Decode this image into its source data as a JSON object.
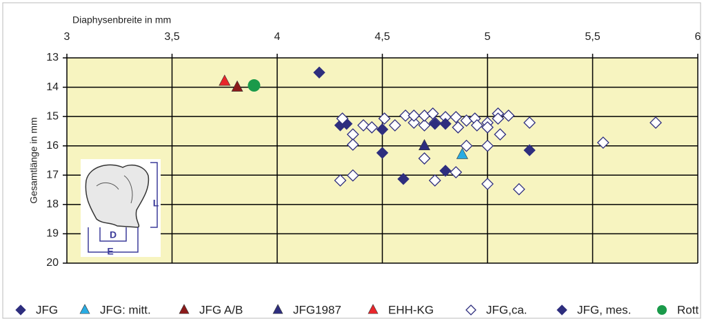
{
  "chart_data": {
    "type": "scatter",
    "x_label": "Diaphysenbreite in mm",
    "y_label": "Gesamtlänge in mm",
    "xlim": [
      3,
      6
    ],
    "xticks": [
      3,
      {
        "value": 3.5,
        "label": "3,5"
      },
      4,
      {
        "value": 4.5,
        "label": "4,5"
      },
      5,
      {
        "value": 5.5,
        "label": "5,5"
      },
      6
    ],
    "ylim": [
      13,
      20
    ],
    "yticks": [
      13,
      14,
      15,
      16,
      17,
      18,
      19,
      20
    ],
    "y_inverted": true,
    "x_axis_position": "top",
    "grid": true,
    "background": "#f7f4c0",
    "annotations": [
      "L",
      "D",
      "E"
    ],
    "series": [
      {
        "name": "JFG",
        "color": "#2e2e7e",
        "marker": "diamond",
        "x": [
          4.2,
          4.3,
          4.33,
          4.5,
          4.5
        ],
        "values": [
          13.5,
          15.3,
          15.25,
          15.44,
          16.24
        ]
      },
      {
        "name": "JFG: mitt.",
        "color": "#29abe2",
        "marker": "triangle",
        "x": [
          4.88
        ],
        "values": [
          16.3
        ]
      },
      {
        "name": "JFG A/B",
        "color": "#8b1a1a",
        "marker": "triangle",
        "x": [
          3.81
        ],
        "values": [
          14.0
        ]
      },
      {
        "name": "JFG1987",
        "color": "#2e2e7e",
        "marker": "triangle",
        "x": [
          4.7
        ],
        "values": [
          16.0
        ]
      },
      {
        "name": "EHH-KG",
        "color": "#e8262b",
        "marker": "triangle",
        "x": [
          3.75
        ],
        "values": [
          13.8
        ]
      },
      {
        "name": "JFG,ca.",
        "color": "#2e2e7e",
        "marker": "diamond-open",
        "x": [
          4.31,
          4.36,
          4.36,
          4.41,
          4.45,
          4.51,
          4.56,
          4.61,
          4.65,
          4.65,
          4.7,
          4.7,
          4.7,
          4.74,
          4.75,
          4.8,
          4.85,
          4.86,
          4.9,
          4.9,
          4.94,
          4.95,
          5.0,
          5.0,
          5.0,
          5.0,
          5.05,
          5.05,
          5.1,
          5.06,
          4.3,
          4.36,
          4.75,
          4.85,
          5.15,
          5.2,
          5.55,
          5.8
        ],
        "values": [
          15.07,
          15.61,
          15.96,
          15.3,
          15.37,
          15.07,
          15.3,
          14.97,
          15.21,
          14.97,
          15.3,
          14.97,
          16.43,
          14.9,
          15.21,
          15.02,
          15.02,
          15.37,
          15.14,
          16.0,
          15.07,
          15.3,
          15.21,
          15.37,
          16.0,
          17.3,
          14.9,
          15.07,
          14.97,
          15.61,
          17.18,
          17.01,
          17.18,
          16.9,
          17.48,
          15.21,
          15.89,
          15.21
        ]
      },
      {
        "name": "JFG, mes.",
        "color": "#2e2e7e",
        "marker": "diamond",
        "x": [
          4.6,
          4.75,
          4.8,
          4.8,
          5.2
        ],
        "values": [
          17.13,
          15.25,
          15.25,
          16.85,
          16.15
        ]
      },
      {
        "name": "Rott",
        "color": "#1a9a4a",
        "marker": "circle",
        "x": [
          3.89
        ],
        "values": [
          13.94
        ]
      }
    ]
  }
}
